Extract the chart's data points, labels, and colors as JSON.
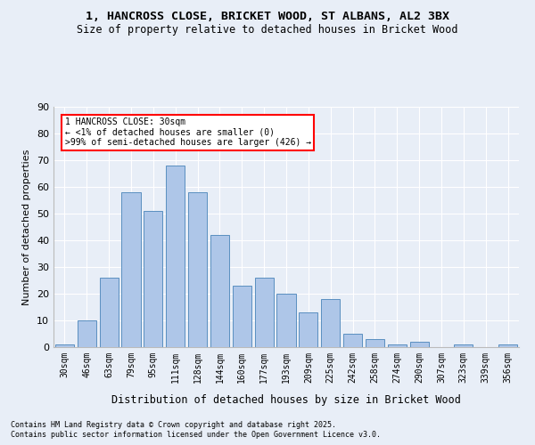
{
  "title_line1": "1, HANCROSS CLOSE, BRICKET WOOD, ST ALBANS, AL2 3BX",
  "title_line2": "Size of property relative to detached houses in Bricket Wood",
  "xlabel": "Distribution of detached houses by size in Bricket Wood",
  "ylabel": "Number of detached properties",
  "bar_labels": [
    "30sqm",
    "46sqm",
    "63sqm",
    "79sqm",
    "95sqm",
    "111sqm",
    "128sqm",
    "144sqm",
    "160sqm",
    "177sqm",
    "193sqm",
    "209sqm",
    "225sqm",
    "242sqm",
    "258sqm",
    "274sqm",
    "290sqm",
    "307sqm",
    "323sqm",
    "339sqm",
    "356sqm"
  ],
  "bar_heights": [
    1,
    10,
    26,
    58,
    51,
    68,
    58,
    42,
    23,
    26,
    20,
    13,
    18,
    5,
    3,
    1,
    2,
    0,
    1,
    0,
    1
  ],
  "bar_color": "#aec6e8",
  "bar_edge_color": "#5a8fc0",
  "background_color": "#e8eef7",
  "annotation_text": "1 HANCROSS CLOSE: 30sqm\n← <1% of detached houses are smaller (0)\n>99% of semi-detached houses are larger (426) →",
  "annotation_bar_index": 0,
  "ylim": [
    0,
    90
  ],
  "yticks": [
    0,
    10,
    20,
    30,
    40,
    50,
    60,
    70,
    80,
    90
  ],
  "footnote_line1": "Contains HM Land Registry data © Crown copyright and database right 2025.",
  "footnote_line2": "Contains public sector information licensed under the Open Government Licence v3.0."
}
